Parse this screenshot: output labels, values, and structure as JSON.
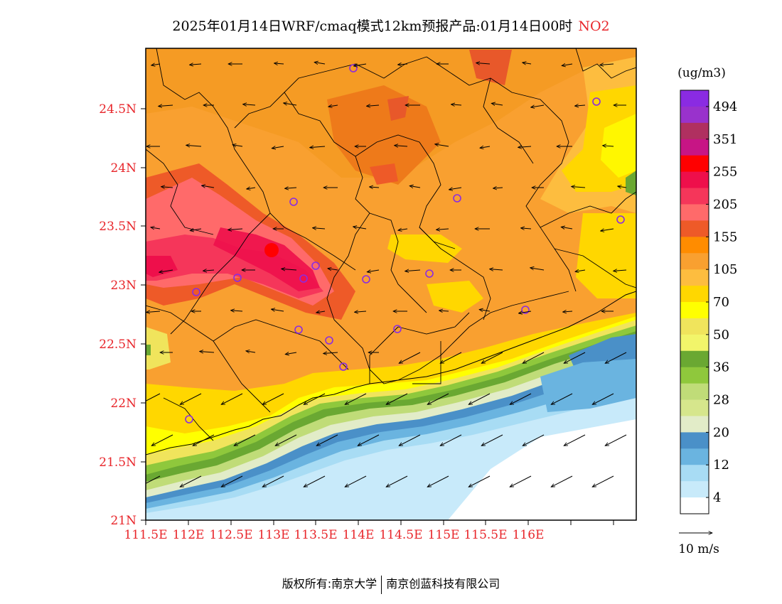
{
  "title": {
    "text": "2025年01月14日WRF/cmaq模式12km预报产品:01月14日00时",
    "pollutant": "NO2"
  },
  "axes": {
    "lat_labels": [
      "24.5N",
      "24N",
      "23.5N",
      "23N",
      "22.5N",
      "22N",
      "21.5N",
      "21N"
    ],
    "lon_labels": [
      "111.5E",
      "112E",
      "112.5E",
      "113E",
      "113.5E",
      "114E",
      "114.5E",
      "115E",
      "115.5E",
      "116E"
    ]
  },
  "legend": {
    "unit": "(ug/m3)",
    "labels": [
      "494",
      "351",
      "255",
      "205",
      "155",
      "105",
      "70",
      "50",
      "36",
      "28",
      "20",
      "12",
      "4"
    ],
    "colors": [
      "#8a2be2",
      "#9932cc",
      "#b03060",
      "#c71585",
      "#ff0000",
      "#ee0f4b",
      "#f5365a",
      "#ff6a6a",
      "#ee5a28",
      "#ff8c00",
      "#f9a030",
      "#fdbd3f",
      "#ffd700",
      "#ffff00",
      "#f0e45c",
      "#f2f56a",
      "#6aa832",
      "#8fc83c",
      "#c0dc78",
      "#d6e68c",
      "#e2ecc8",
      "#4a90c8",
      "#6ab4e0",
      "#a8dcf4",
      "#c8eafa",
      "#ffffff"
    ],
    "wind_ref": "10 m/s"
  },
  "footer": {
    "left": "版权所有:南京大学",
    "right": "南京创蓝科技有限公司"
  }
}
